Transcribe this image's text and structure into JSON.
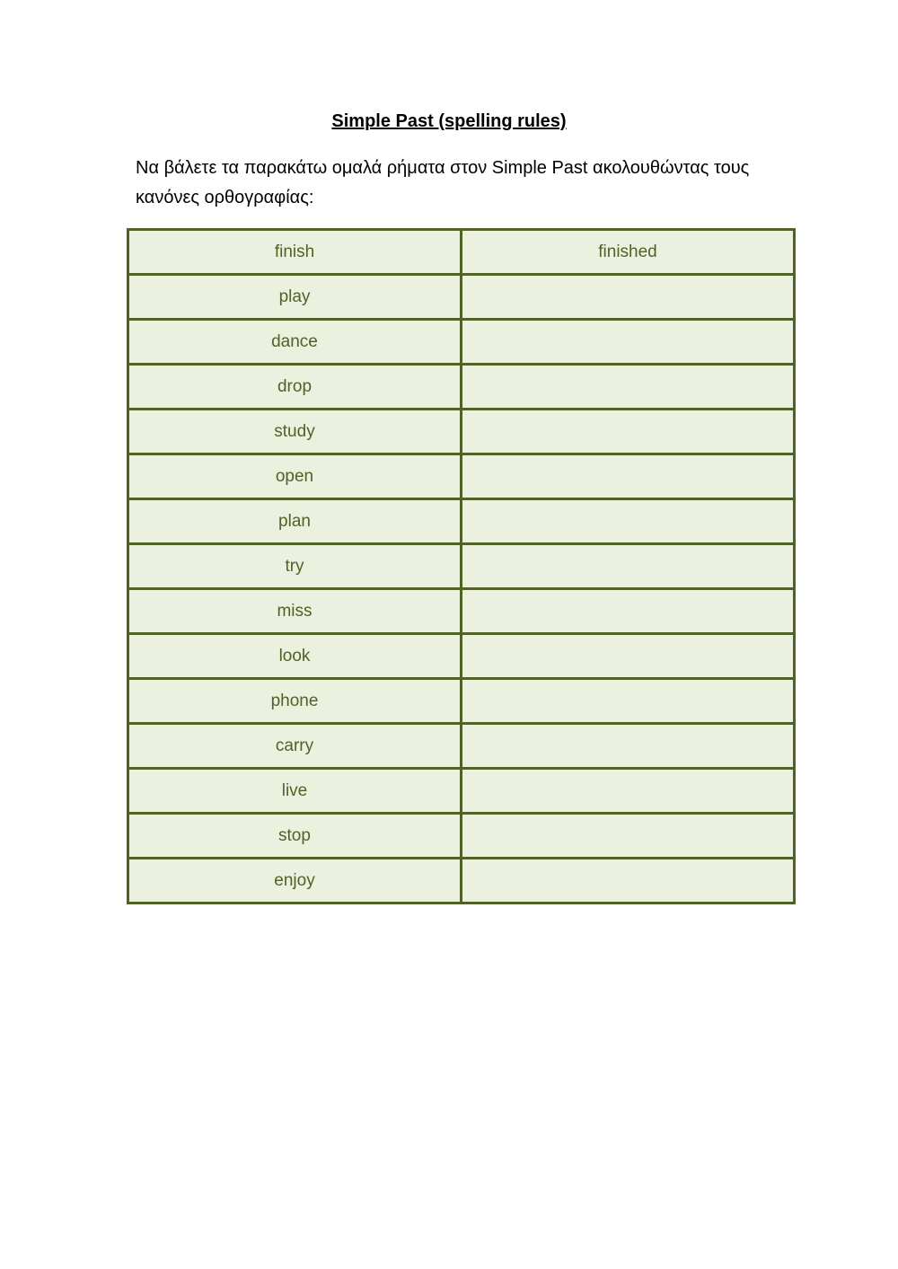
{
  "title": "Simple Past (spelling rules)",
  "instructions": "Να βάλετε τα παρακάτω ομαλά ρήματα στον Simple Past ακολουθώντας τους κανόνες ορθογραφίας:",
  "colors": {
    "border": "#4f6228",
    "cell_fill": "#ebf1de",
    "text": "#4f6228"
  },
  "table": {
    "rows": [
      {
        "verb": "finish",
        "answer": "finished"
      },
      {
        "verb": "play",
        "answer": ""
      },
      {
        "verb": "dance",
        "answer": ""
      },
      {
        "verb": "drop",
        "answer": ""
      },
      {
        "verb": "study",
        "answer": ""
      },
      {
        "verb": "open",
        "answer": ""
      },
      {
        "verb": "plan",
        "answer": ""
      },
      {
        "verb": "try",
        "answer": ""
      },
      {
        "verb": "miss",
        "answer": ""
      },
      {
        "verb": "look",
        "answer": ""
      },
      {
        "verb": "phone",
        "answer": ""
      },
      {
        "verb": "carry",
        "answer": ""
      },
      {
        "verb": "live",
        "answer": ""
      },
      {
        "verb": "stop",
        "answer": ""
      },
      {
        "verb": "enjoy",
        "answer": ""
      }
    ]
  }
}
